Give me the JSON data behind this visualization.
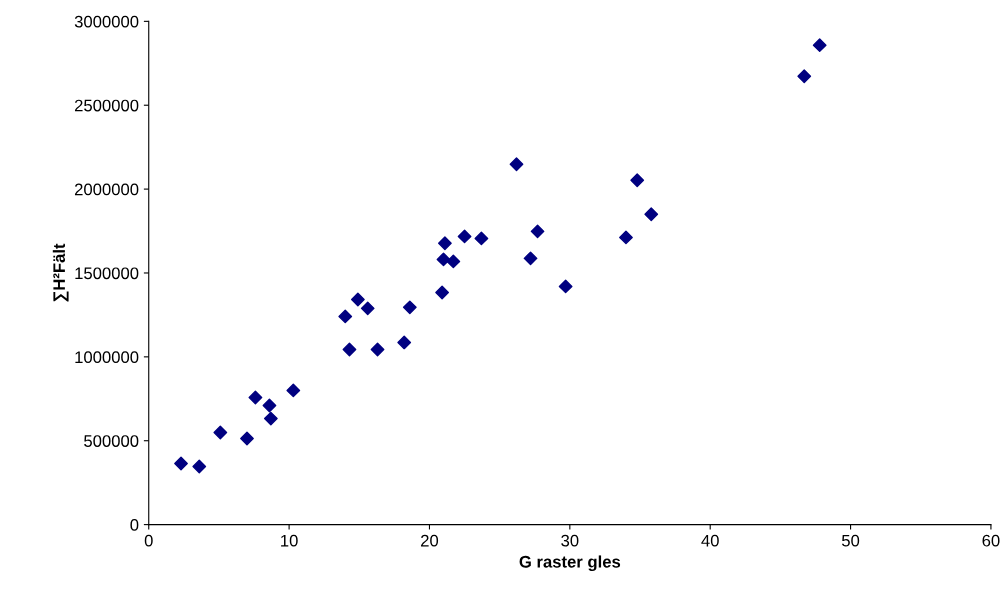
{
  "chart_data": {
    "type": "scatter",
    "xlabel": "G raster gles",
    "ylabel": "∑H²Fält",
    "x": [
      2.3,
      3.6,
      5.1,
      7.0,
      7.6,
      8.6,
      8.7,
      10.3,
      14.0,
      14.3,
      14.9,
      15.6,
      16.3,
      18.2,
      18.6,
      20.9,
      21.0,
      21.1,
      21.7,
      22.5,
      23.7,
      26.2,
      27.2,
      27.7,
      29.7,
      34.0,
      34.8,
      35.8,
      46.7,
      47.8
    ],
    "values": [
      364000,
      346000,
      549000,
      513000,
      758000,
      710000,
      632000,
      800000,
      1241000,
      1044000,
      1342000,
      1289000,
      1044000,
      1086000,
      1295000,
      1384000,
      1581000,
      1677000,
      1569000,
      1718000,
      1706000,
      2148000,
      1587000,
      1748000,
      1420000,
      1712000,
      2053000,
      1850000,
      2673000,
      2858000
    ],
    "color": "#000080",
    "marker": "diamond",
    "grid": false,
    "legend": false,
    "xlim": [
      0,
      60
    ],
    "xticks": [
      0,
      10,
      20,
      30,
      40,
      50,
      60
    ],
    "ylim": [
      0,
      3000000
    ],
    "yticks": [
      0,
      500000,
      1000000,
      1500000,
      2000000,
      2500000,
      3000000
    ]
  }
}
